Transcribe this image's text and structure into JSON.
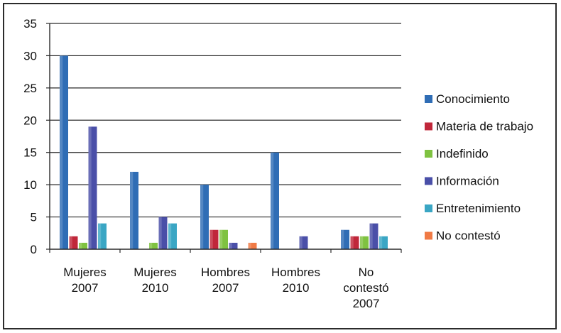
{
  "chart_data": {
    "type": "bar",
    "categories": [
      [
        "Mujeres",
        "2007"
      ],
      [
        "Mujeres",
        "2010"
      ],
      [
        "Hombres",
        "2007"
      ],
      [
        "Hombres",
        "2010"
      ],
      [
        "No",
        "contestó",
        "2007"
      ]
    ],
    "series": [
      {
        "name": "Conocimiento",
        "color": "#2f6db5",
        "values": [
          30,
          12,
          10,
          15,
          3
        ]
      },
      {
        "name": "Materia de trabajo",
        "color": "#c0273a",
        "values": [
          2,
          0,
          3,
          0,
          2
        ]
      },
      {
        "name": "Indefinido",
        "color": "#7fc241",
        "values": [
          1,
          1,
          3,
          0,
          2
        ]
      },
      {
        "name": "Información",
        "color": "#4a4fa8",
        "values": [
          19,
          5,
          1,
          2,
          4
        ]
      },
      {
        "name": "Entretenimiento",
        "color": "#3aa6c4",
        "values": [
          4,
          4,
          0,
          0,
          2
        ]
      },
      {
        "name": "No contestó",
        "color": "#f07a45",
        "values": [
          0,
          0,
          1,
          0,
          0
        ]
      }
    ],
    "y_ticks": [
      "0",
      "5",
      "10",
      "15",
      "20",
      "25",
      "30",
      "35"
    ],
    "ylim": [
      0,
      35
    ],
    "grid": true,
    "legend_position": "right"
  }
}
